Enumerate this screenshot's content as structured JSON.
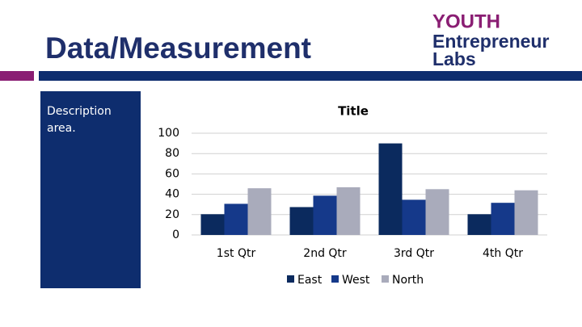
{
  "header": {
    "title": "Data/Measurement",
    "logo": [
      "YOUTH",
      "Entrepreneur",
      "Labs"
    ]
  },
  "description": "Description area.",
  "chart_data": {
    "type": "bar",
    "title": "Title",
    "categories": [
      "1st Qtr",
      "2nd Qtr",
      "3rd Qtr",
      "4th Qtr"
    ],
    "series": [
      {
        "name": "East",
        "color": "#0b2a5e",
        "values": [
          20.4,
          27.4,
          90,
          20.4
        ]
      },
      {
        "name": "West",
        "color": "#15398a",
        "values": [
          30.6,
          38.6,
          34.6,
          31.6
        ]
      },
      {
        "name": "North",
        "color": "#a9abbb",
        "values": [
          45.9,
          46.9,
          45,
          43.9
        ]
      }
    ],
    "ylim": [
      0,
      100
    ],
    "yticks": [
      0,
      20,
      40,
      60,
      80,
      100
    ],
    "grid": true,
    "legend": "bottom"
  }
}
